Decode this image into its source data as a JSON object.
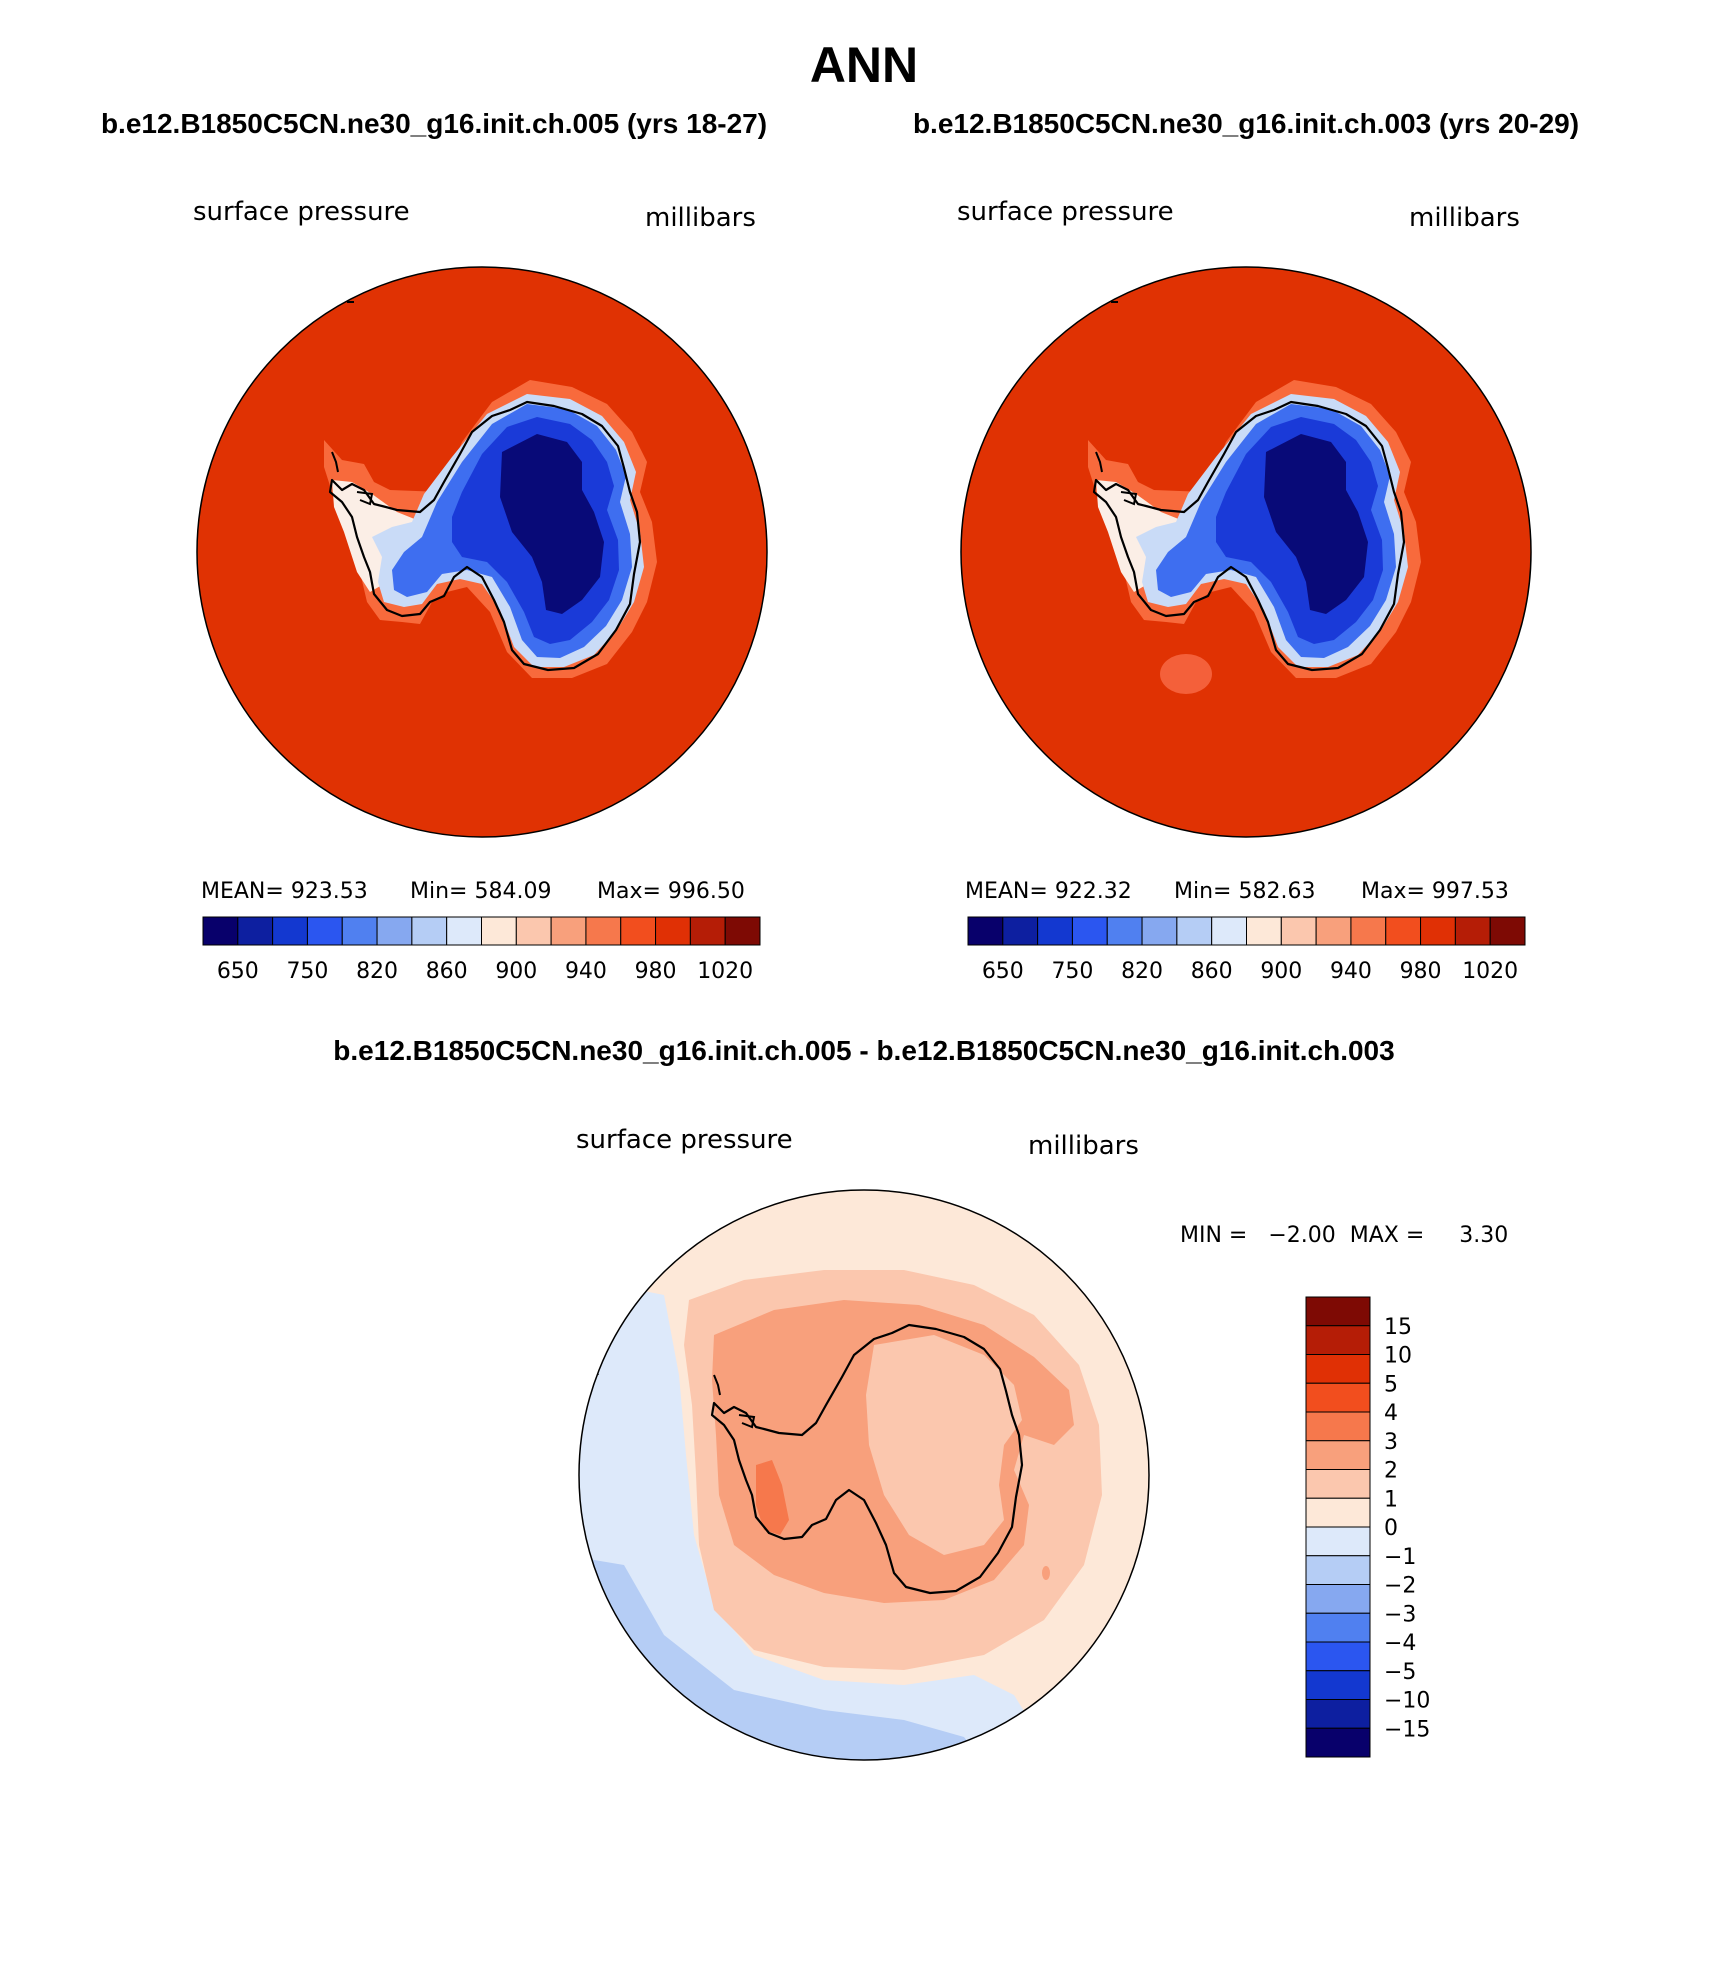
{
  "figure": {
    "title": "ANN",
    "left_case_label": "b.e12.B1850C5CN.ne30_g16.init.ch.005 (yrs 18-27)",
    "right_case_label": "b.e12.B1850C5CN.ne30_g16.init.ch.003 (yrs 20-29)",
    "diff_label": "b.e12.B1850C5CN.ne30_g16.init.ch.005 - b.e12.B1850C5CN.ne30_g16.init.ch.003"
  },
  "panels": {
    "left": {
      "variable": "surface pressure",
      "units": "millibars",
      "mean_text": "MEAN= 923.53",
      "min_text": "Min= 584.09",
      "max_text": "Max= 996.50",
      "mean": 923.53,
      "min": 584.09,
      "max": 996.5
    },
    "right": {
      "variable": "surface pressure",
      "units": "millibars",
      "mean_text": "MEAN= 922.32",
      "min_text": "Min= 582.63",
      "max_text": "Max= 997.53",
      "mean": 922.32,
      "min": 582.63,
      "max": 997.53
    },
    "diff": {
      "variable": "surface pressure",
      "units": "millibars",
      "minmax_text": "MIN =   −2.00  MAX =     3.30",
      "min": -2.0,
      "max": 3.3
    }
  },
  "colorbars": {
    "horizontal_colors": [
      "#08006b",
      "#0d1fa0",
      "#1338d0",
      "#2b56f0",
      "#5080f0",
      "#86a8f0",
      "#b5cdf5",
      "#dde9fa",
      "#fde8d8",
      "#fbc7ae",
      "#f8a07c",
      "#f6784c",
      "#f24e1e",
      "#e03005",
      "#b51d06",
      "#7e0a04"
    ],
    "horizontal_ticks": [
      "650",
      "750",
      "820",
      "860",
      "900",
      "940",
      "980",
      "1020"
    ],
    "vertical_colors_top_to_bottom": [
      "#7e0a04",
      "#b51d06",
      "#e03005",
      "#f24e1e",
      "#f6784c",
      "#f8a07c",
      "#fbc7ae",
      "#fde8d8",
      "#dde9fa",
      "#b5cdf5",
      "#86a8f0",
      "#5080f0",
      "#2b56f0",
      "#1338d0",
      "#0d1fa0",
      "#08006b"
    ],
    "vertical_ticks": [
      "15",
      "10",
      "5",
      "4",
      "3",
      "2",
      "1",
      "0",
      "−1",
      "−2",
      "−3",
      "−4",
      "−5",
      "−10",
      "−15"
    ]
  },
  "colors": {
    "ocean": "#e03203",
    "diff_base": "#fde8d8"
  }
}
